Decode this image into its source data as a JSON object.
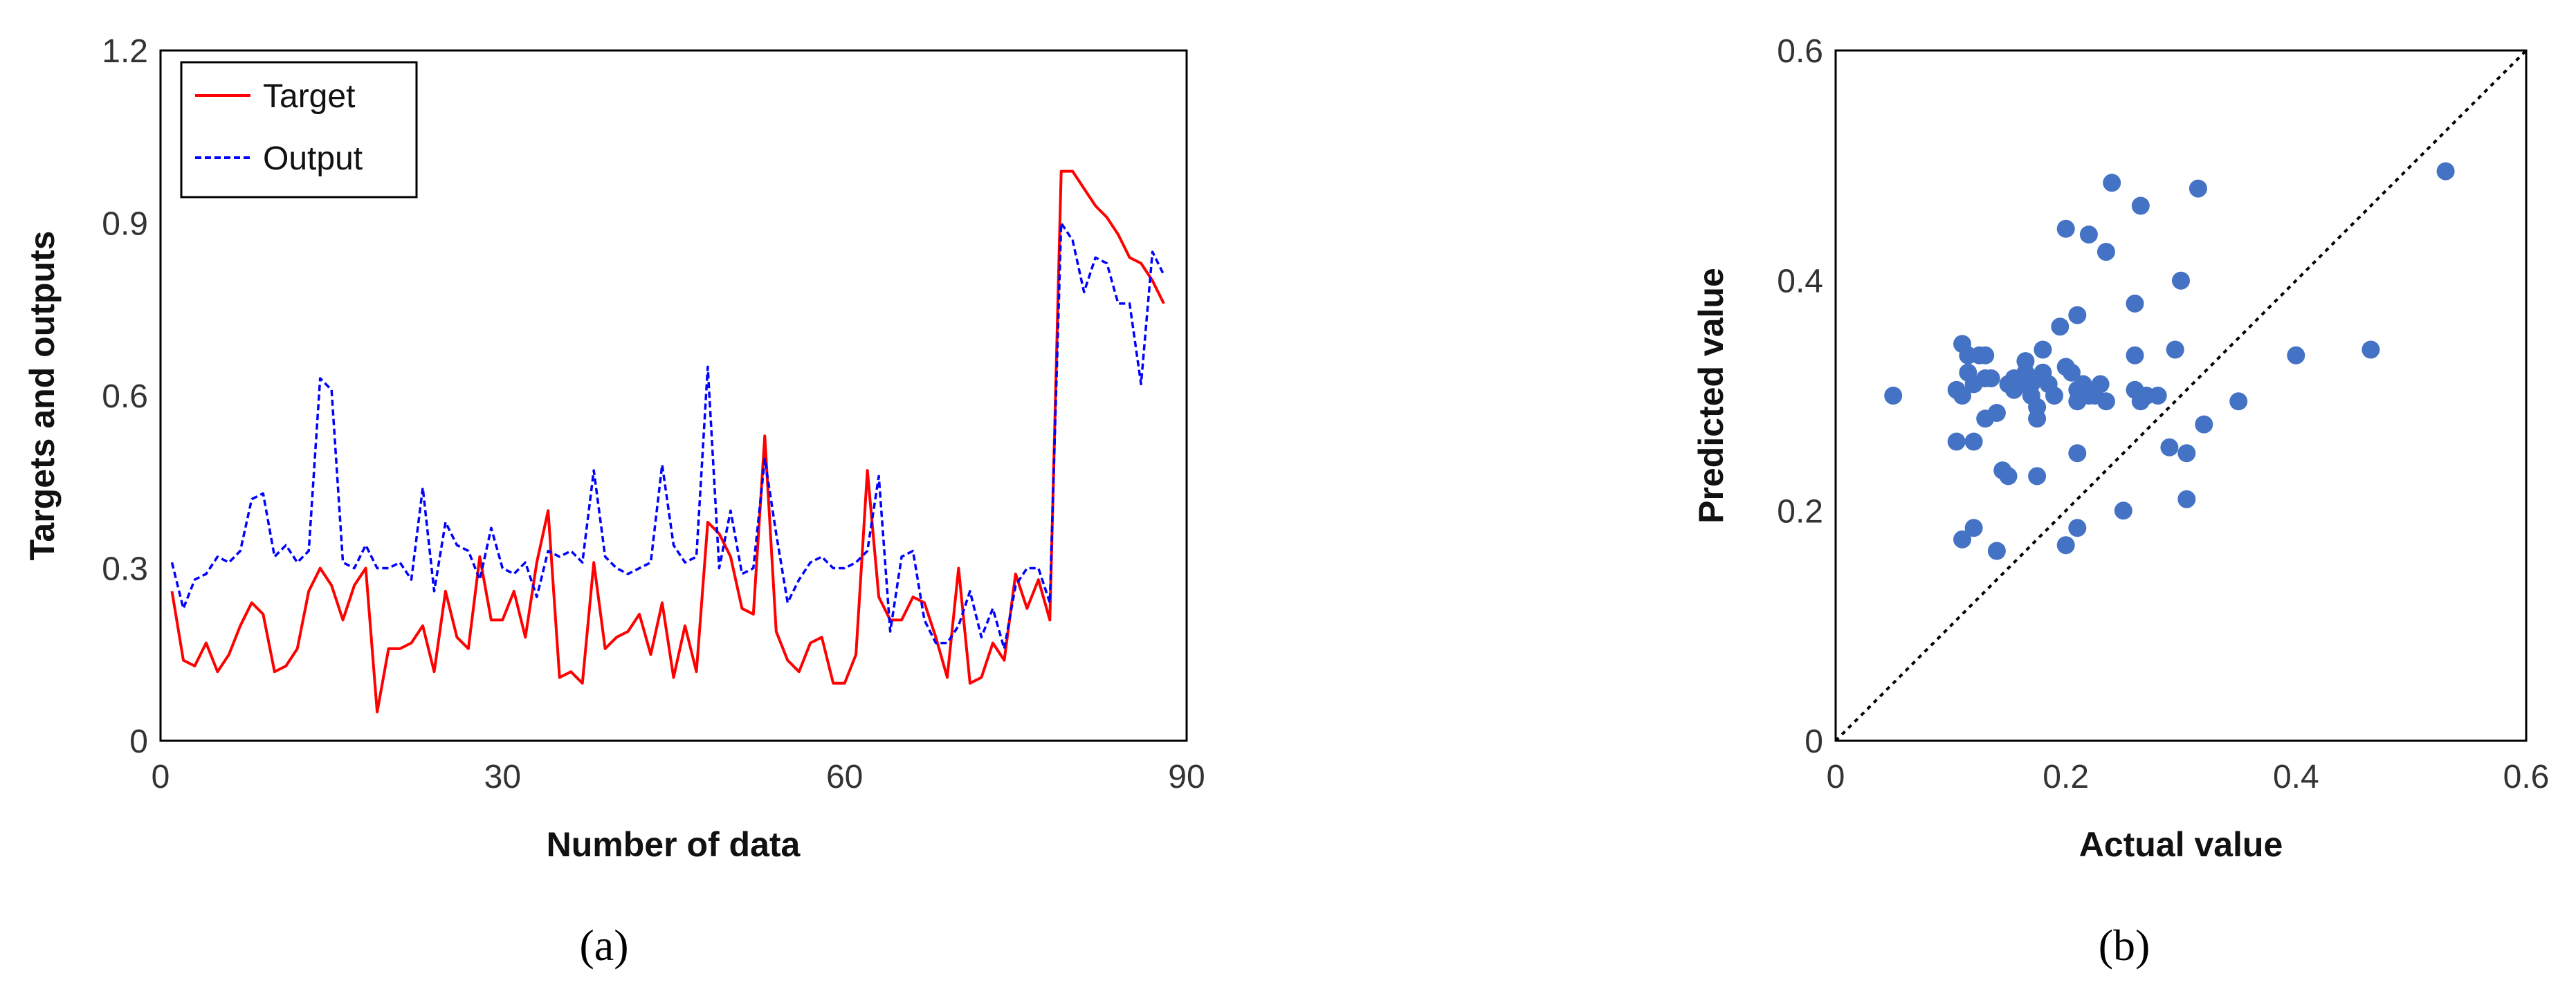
{
  "chart_data": [
    {
      "type": "line",
      "title": "",
      "xlabel": "Number of data",
      "ylabel": "Targets and outputs",
      "xlim": [
        0,
        90
      ],
      "ylim": [
        0,
        1.2
      ],
      "xticks": [
        0,
        30,
        60,
        90
      ],
      "yticks": [
        0,
        0.3,
        0.6,
        0.9,
        1.2
      ],
      "ytick_labels": [
        "0",
        "0.3",
        "0.6",
        "0.9",
        "1.2"
      ],
      "grid": false,
      "legend_position": "top-left",
      "x": [
        1,
        2,
        3,
        4,
        5,
        6,
        7,
        8,
        9,
        10,
        11,
        12,
        13,
        14,
        15,
        16,
        17,
        18,
        19,
        20,
        21,
        22,
        23,
        24,
        25,
        26,
        27,
        28,
        29,
        30,
        31,
        32,
        33,
        34,
        35,
        36,
        37,
        38,
        39,
        40,
        41,
        42,
        43,
        44,
        45,
        46,
        47,
        48,
        49,
        50,
        51,
        52,
        53,
        54,
        55,
        56,
        57,
        58,
        59,
        60,
        61,
        62,
        63,
        64,
        65,
        66,
        67,
        68,
        69,
        70,
        71,
        72,
        73,
        74,
        75,
        76,
        77,
        78,
        79,
        80,
        81,
        82,
        83,
        84,
        85,
        86,
        87,
        88
      ],
      "series": [
        {
          "name": "Target",
          "color": "#ff0000",
          "dash": "solid",
          "values": [
            0.26,
            0.14,
            0.13,
            0.17,
            0.12,
            0.15,
            0.2,
            0.24,
            0.22,
            0.12,
            0.13,
            0.16,
            0.26,
            0.3,
            0.27,
            0.21,
            0.27,
            0.3,
            0.05,
            0.16,
            0.16,
            0.17,
            0.2,
            0.12,
            0.26,
            0.18,
            0.16,
            0.32,
            0.21,
            0.21,
            0.26,
            0.18,
            0.31,
            0.4,
            0.11,
            0.12,
            0.1,
            0.31,
            0.16,
            0.18,
            0.19,
            0.22,
            0.15,
            0.24,
            0.11,
            0.2,
            0.12,
            0.38,
            0.36,
            0.32,
            0.23,
            0.22,
            0.53,
            0.19,
            0.14,
            0.12,
            0.17,
            0.18,
            0.1,
            0.1,
            0.15,
            0.47,
            0.25,
            0.21,
            0.21,
            0.25,
            0.24,
            0.18,
            0.11,
            0.3,
            0.1,
            0.11,
            0.17,
            0.14,
            0.29,
            0.23,
            0.28,
            0.21,
            0.99,
            0.99,
            0.96,
            0.93,
            0.91,
            0.88,
            0.84,
            0.83,
            0.8,
            0.76
          ]
        },
        {
          "name": "Output",
          "color": "#0000ff",
          "dash": "dashed",
          "values": [
            0.31,
            0.23,
            0.28,
            0.29,
            0.32,
            0.31,
            0.33,
            0.42,
            0.43,
            0.32,
            0.34,
            0.31,
            0.33,
            0.63,
            0.61,
            0.31,
            0.3,
            0.34,
            0.3,
            0.3,
            0.31,
            0.28,
            0.44,
            0.26,
            0.38,
            0.34,
            0.33,
            0.28,
            0.37,
            0.3,
            0.29,
            0.31,
            0.25,
            0.33,
            0.32,
            0.33,
            0.31,
            0.47,
            0.32,
            0.3,
            0.29,
            0.3,
            0.31,
            0.48,
            0.34,
            0.31,
            0.32,
            0.65,
            0.3,
            0.4,
            0.29,
            0.3,
            0.49,
            0.36,
            0.24,
            0.28,
            0.31,
            0.32,
            0.3,
            0.3,
            0.31,
            0.33,
            0.46,
            0.19,
            0.32,
            0.33,
            0.21,
            0.17,
            0.17,
            0.2,
            0.26,
            0.18,
            0.23,
            0.16,
            0.27,
            0.3,
            0.3,
            0.24,
            0.9,
            0.87,
            0.78,
            0.84,
            0.83,
            0.76,
            0.76,
            0.62,
            0.85,
            0.81
          ]
        }
      ],
      "panel_label": "(a)"
    },
    {
      "type": "scatter",
      "title": "",
      "xlabel": "Actual value",
      "ylabel": "Predicted value",
      "xlim": [
        0,
        0.6
      ],
      "ylim": [
        0,
        0.6
      ],
      "xticks": [
        0,
        0.2,
        0.4,
        0.6
      ],
      "yticks": [
        0,
        0.2,
        0.4,
        0.6
      ],
      "xtick_labels": [
        "0",
        "0.2",
        "0.4",
        "0.6"
      ],
      "ytick_labels": [
        "0",
        "0.2",
        "0.4",
        "0.6"
      ],
      "grid": false,
      "reference_line": "y = x (dotted)",
      "point_color": "#4472c4",
      "points": [
        [
          0.05,
          0.3
        ],
        [
          0.105,
          0.305
        ],
        [
          0.11,
          0.3
        ],
        [
          0.105,
          0.26
        ],
        [
          0.11,
          0.345
        ],
        [
          0.11,
          0.175
        ],
        [
          0.115,
          0.335
        ],
        [
          0.115,
          0.32
        ],
        [
          0.12,
          0.31
        ],
        [
          0.12,
          0.26
        ],
        [
          0.12,
          0.185
        ],
        [
          0.125,
          0.335
        ],
        [
          0.13,
          0.335
        ],
        [
          0.13,
          0.28
        ],
        [
          0.13,
          0.315
        ],
        [
          0.135,
          0.315
        ],
        [
          0.14,
          0.165
        ],
        [
          0.14,
          0.285
        ],
        [
          0.145,
          0.235
        ],
        [
          0.15,
          0.23
        ],
        [
          0.15,
          0.31
        ],
        [
          0.155,
          0.315
        ],
        [
          0.155,
          0.305
        ],
        [
          0.16,
          0.31
        ],
        [
          0.165,
          0.32
        ],
        [
          0.165,
          0.33
        ],
        [
          0.17,
          0.3
        ],
        [
          0.17,
          0.31
        ],
        [
          0.175,
          0.28
        ],
        [
          0.175,
          0.29
        ],
        [
          0.175,
          0.23
        ],
        [
          0.18,
          0.34
        ],
        [
          0.18,
          0.32
        ],
        [
          0.185,
          0.31
        ],
        [
          0.19,
          0.3
        ],
        [
          0.195,
          0.36
        ],
        [
          0.2,
          0.325
        ],
        [
          0.2,
          0.445
        ],
        [
          0.2,
          0.17
        ],
        [
          0.205,
          0.32
        ],
        [
          0.21,
          0.37
        ],
        [
          0.21,
          0.25
        ],
        [
          0.21,
          0.305
        ],
        [
          0.21,
          0.295
        ],
        [
          0.21,
          0.185
        ],
        [
          0.215,
          0.31
        ],
        [
          0.22,
          0.44
        ],
        [
          0.22,
          0.3
        ],
        [
          0.225,
          0.3
        ],
        [
          0.23,
          0.31
        ],
        [
          0.235,
          0.295
        ],
        [
          0.235,
          0.425
        ],
        [
          0.24,
          0.485
        ],
        [
          0.25,
          0.2
        ],
        [
          0.26,
          0.38
        ],
        [
          0.26,
          0.335
        ],
        [
          0.26,
          0.305
        ],
        [
          0.265,
          0.295
        ],
        [
          0.265,
          0.465
        ],
        [
          0.27,
          0.3
        ],
        [
          0.28,
          0.3
        ],
        [
          0.29,
          0.255
        ],
        [
          0.295,
          0.34
        ],
        [
          0.3,
          0.4
        ],
        [
          0.305,
          0.25
        ],
        [
          0.305,
          0.21
        ],
        [
          0.315,
          0.48
        ],
        [
          0.32,
          0.275
        ],
        [
          0.35,
          0.295
        ],
        [
          0.4,
          0.335
        ],
        [
          0.465,
          0.34
        ],
        [
          0.53,
          0.495
        ]
      ],
      "panel_label": "(b)"
    }
  ]
}
